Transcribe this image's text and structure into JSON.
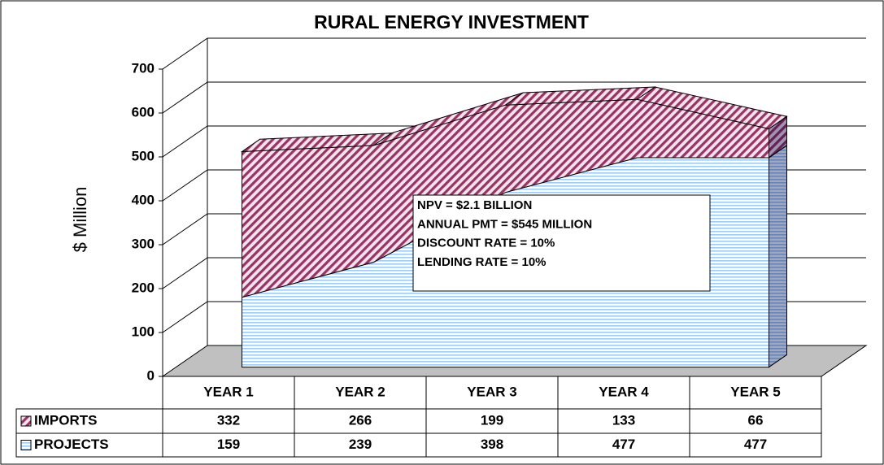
{
  "chart_data": {
    "type": "area",
    "stacked": true,
    "title": "RURAL ENERGY INVESTMENT",
    "y_label": "$ Million",
    "categories": [
      "YEAR 1",
      "YEAR 2",
      "YEAR 3",
      "YEAR 4",
      "YEAR 5"
    ],
    "series": [
      {
        "name": "IMPORTS",
        "color": "#993366",
        "values": [
          332,
          266,
          199,
          133,
          66
        ]
      },
      {
        "name": "PROJECTS",
        "color": "#99ccff",
        "values": [
          159,
          239,
          398,
          477,
          477
        ]
      }
    ],
    "ylim": [
      0,
      700
    ],
    "yticks": [
      0,
      100,
      200,
      300,
      400,
      500,
      600,
      700
    ],
    "grid": true,
    "annotations": [
      "NPV = $2.1 BILLION",
      "ANNUAL PMT = $545 MILLION",
      "DISCOUNT RATE = 10%",
      "LENDING RATE = 10%"
    ]
  }
}
